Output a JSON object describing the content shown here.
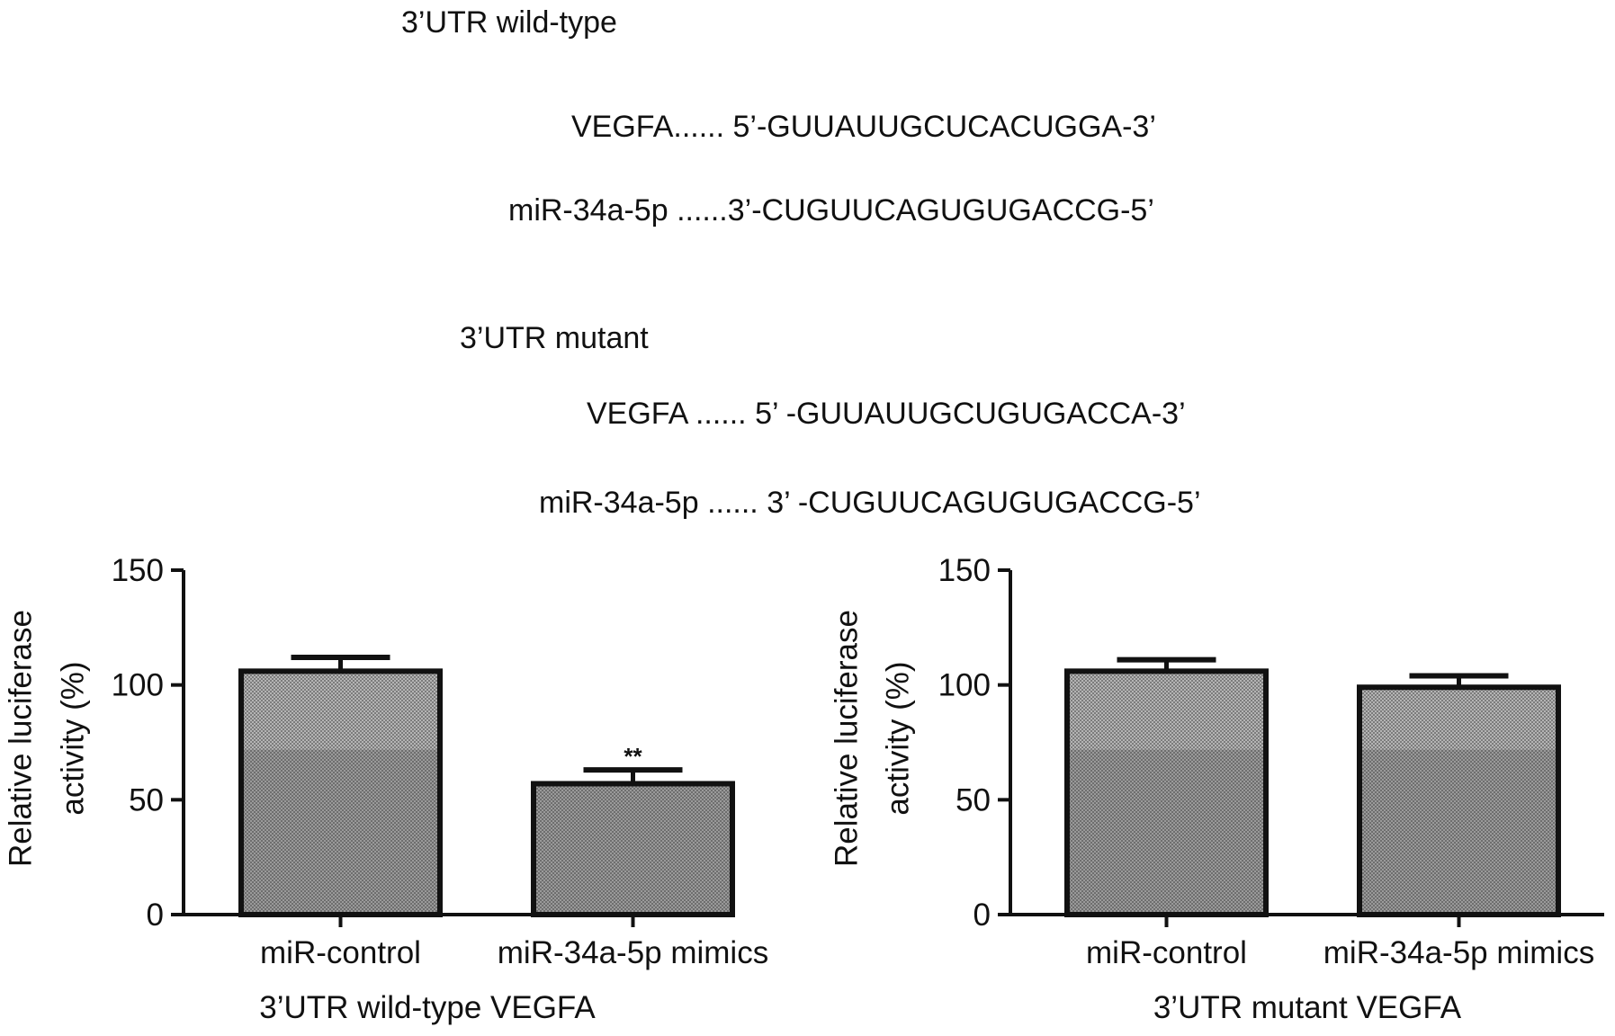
{
  "header": {
    "wt_title": "3’UTR wild-type",
    "wt_vegfa": "VEGFA...... 5’-GUUAUUGCUCACUGGA-3’",
    "wt_mir": "miR-34a-5p ......3’-CUGUUCAGUGUGACCG-5’",
    "mut_title": "3’UTR mutant",
    "mut_vegfa": "VEGFA ...... 5’ -GUUAUUGCUGUGACCA-3’",
    "mut_mir": "miR-34a-5p ...... 3’ -CUGUUCAGUGUGACCG-5’"
  },
  "chart_data": [
    {
      "type": "bar",
      "title": "",
      "xlabel": "3’UTR wild-type VEGFA",
      "ylabel": [
        "Relative luciferase",
        "activity (%)"
      ],
      "categories": [
        "miR-control",
        "miR-34a-5p mimics"
      ],
      "values": [
        106,
        57
      ],
      "errors": [
        6,
        6
      ],
      "annotations": [
        "",
        "**"
      ],
      "ylim": [
        0,
        150
      ],
      "yticks": [
        "0",
        "50",
        "100",
        "150"
      ],
      "grid": false
    },
    {
      "type": "bar",
      "title": "",
      "xlabel": "3’UTR mutant VEGFA",
      "ylabel": [
        "Relative luciferase",
        "activity (%)"
      ],
      "categories": [
        "miR-control",
        "miR-34a-5p mimics"
      ],
      "values": [
        106,
        99
      ],
      "errors": [
        5,
        5
      ],
      "annotations": [
        "",
        ""
      ],
      "ylim": [
        0,
        150
      ],
      "yticks": [
        "0",
        "50",
        "100",
        "150"
      ],
      "grid": false
    }
  ],
  "colors": {
    "bar_fill": "#8c8c8c",
    "bar_fill_light": "#a8a8a8",
    "stroke": "#111111"
  }
}
